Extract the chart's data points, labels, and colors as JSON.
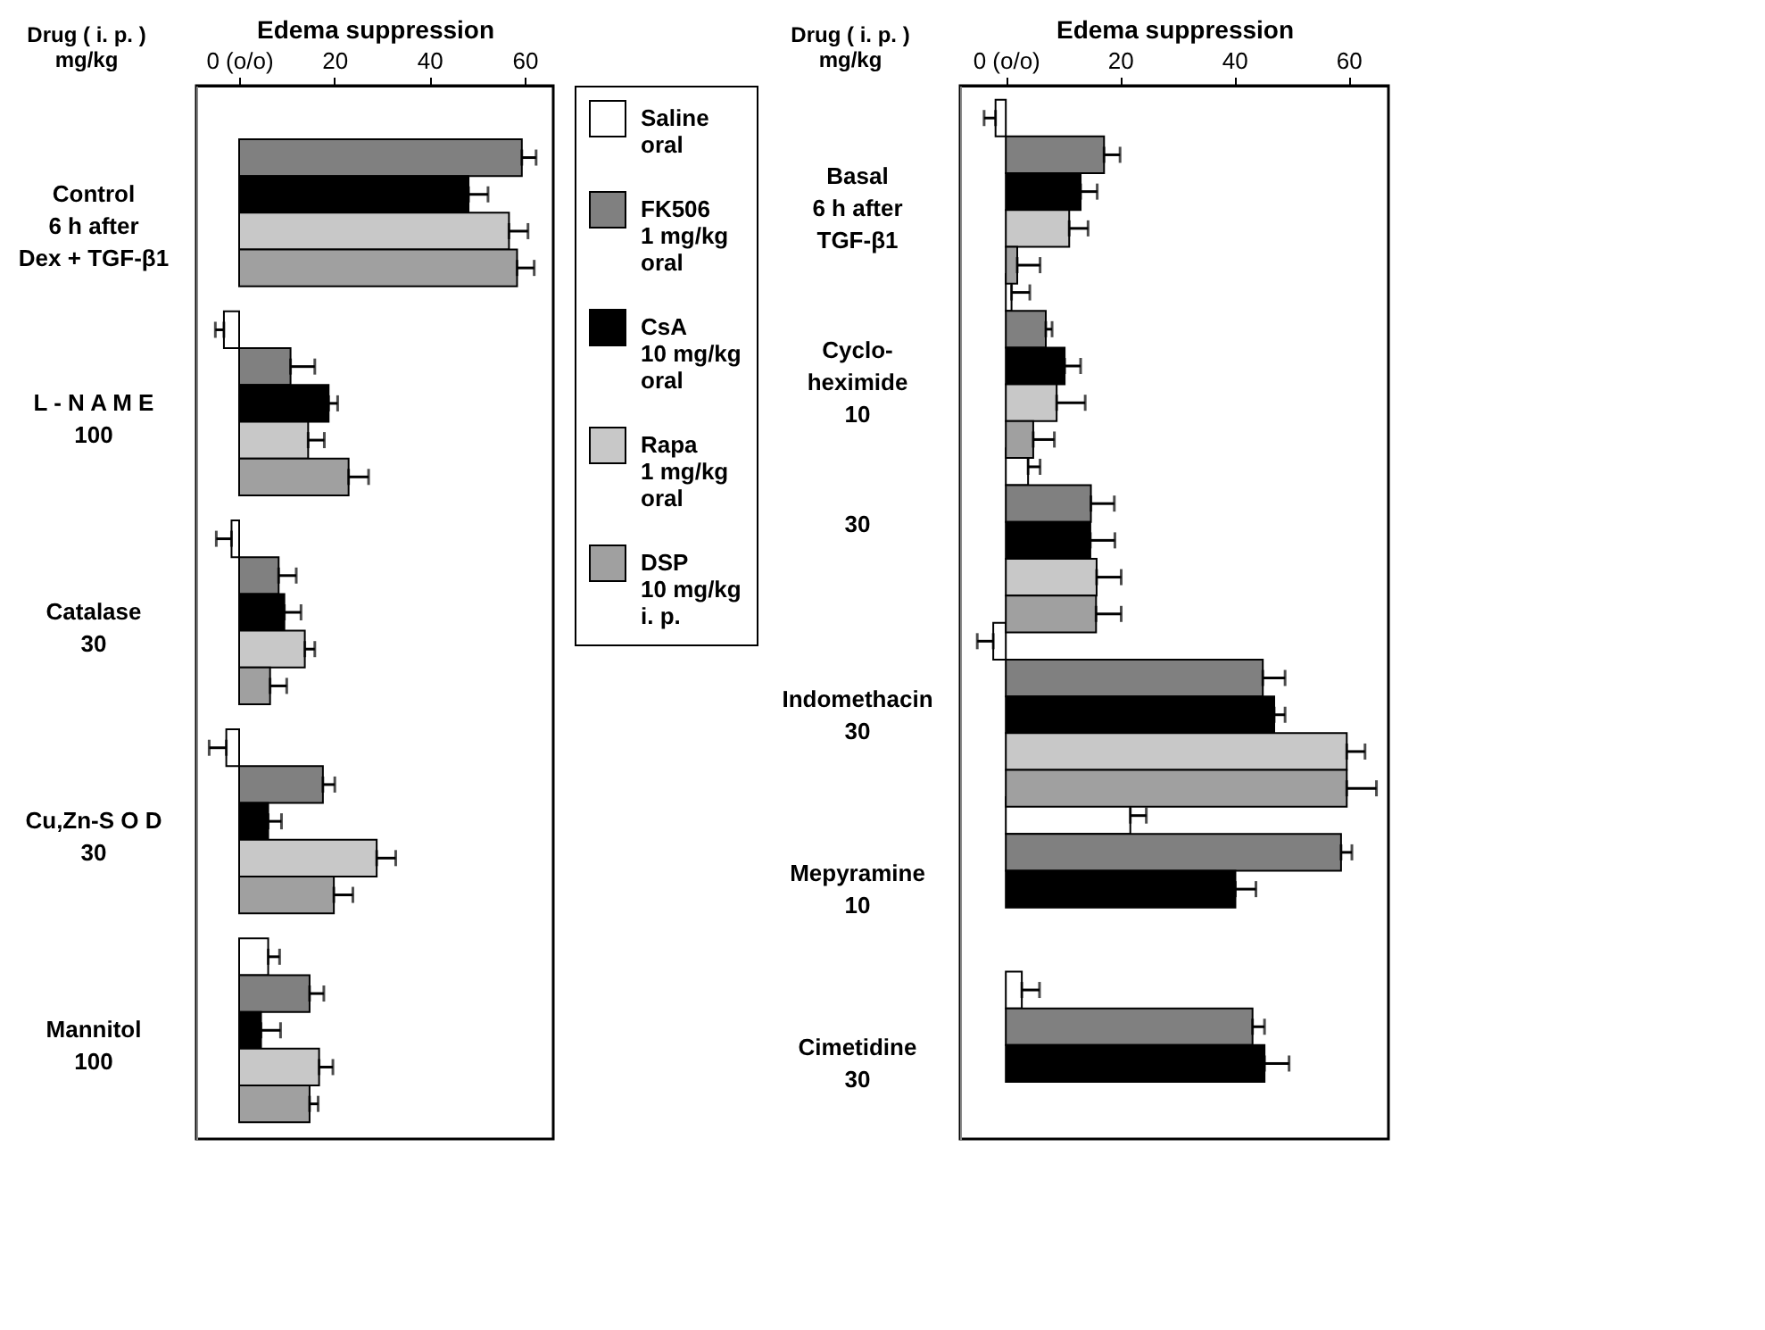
{
  "chart_data": [
    {
      "type": "bar",
      "orientation": "horizontal",
      "xlabel": "Edema suppression",
      "ylabel": "Drug ( i. p. )\nmg/kg",
      "xlim": [
        -9,
        66
      ],
      "xticks": [
        {
          "value": 0,
          "label": "0 (o/o)"
        },
        20,
        40,
        60
      ],
      "legend": "right",
      "categories": [
        "Control\n6 h   after\nDex + TGF-β1",
        "L - N A M E\n100",
        "Catalase\n30",
        "Cu,Zn-S O D\n30",
        "Mannitol\n100"
      ],
      "series": [
        {
          "name": "Saline\noral",
          "color": "#ffffff",
          "values": [
            null,
            -3.2,
            -1.6,
            -2.7,
            6.1
          ],
          "errors": [
            null,
            [
              -5.0,
              -3.2
            ],
            [
              -4.8,
              -1.6
            ],
            [
              -6.3,
              -2.7
            ],
            [
              6.1,
              8.5
            ]
          ]
        },
        {
          "name": "FK506\n1 mg/kg\noral",
          "color": "#808080",
          "values": [
            59.4,
            10.8,
            8.3,
            17.6,
            14.8
          ],
          "errors": [
            [
              59.4,
              62.4
            ],
            [
              10.8,
              15.9
            ],
            [
              8.3,
              12.0
            ],
            [
              17.6,
              20.1
            ],
            [
              14.8,
              17.8
            ]
          ]
        },
        {
          "name": "CsA\n10 mg/kg\noral",
          "color": "#000000",
          "values": [
            48.2,
            18.8,
            9.5,
            6.1,
            4.6
          ],
          "errors": [
            [
              48.2,
              52.3
            ],
            [
              18.8,
              20.7
            ],
            [
              9.5,
              13.0
            ],
            [
              6.1,
              8.9
            ],
            [
              4.6,
              8.7
            ]
          ]
        },
        {
          "name": "Rapa\n1 mg/kg\noral",
          "color": "#c8c8c8",
          "values": [
            56.7,
            14.5,
            13.8,
            28.9,
            16.8
          ],
          "errors": [
            [
              56.7,
              60.7
            ],
            [
              14.5,
              17.9
            ],
            [
              13.8,
              15.9
            ],
            [
              28.9,
              32.9
            ],
            [
              16.8,
              19.7
            ]
          ]
        },
        {
          "name": "DSP\n10 mg/kg\ni. p.",
          "color": "#a0a0a0",
          "values": [
            58.4,
            23.0,
            6.5,
            19.9,
            14.8
          ],
          "errors": [
            [
              58.4,
              62.0
            ],
            [
              23.0,
              27.2
            ],
            [
              6.5,
              10.0
            ],
            [
              19.9,
              23.9
            ],
            [
              14.8,
              16.6
            ]
          ]
        }
      ]
    },
    {
      "type": "bar",
      "orientation": "horizontal",
      "xlabel": "Edema suppression",
      "ylabel": "Drug ( i. p. )\nmg/kg",
      "xlim": [
        -8,
        67
      ],
      "xticks": [
        {
          "value": 0,
          "label": "0 (o/o)"
        },
        20,
        40,
        60
      ],
      "categories": [
        "Basal\n6 h   after\nTGF-β1",
        "Cyclo-\nheximide\n10",
        "30",
        "Indomethacin\n30",
        "Mepyramine\n10",
        "Cimetidine\n30"
      ],
      "series": [
        {
          "color": "#ffffff",
          "values": [
            -1.8,
            1.0,
            3.9,
            -2.2,
            21.8,
            2.8
          ],
          "errors": [
            [
              -3.8,
              -1.8
            ],
            [
              1.0,
              4.2
            ],
            [
              3.9,
              6.0
            ],
            [
              -5.0,
              -2.2
            ],
            [
              21.8,
              24.6
            ],
            [
              2.8,
              5.9
            ]
          ]
        },
        {
          "color": "#808080",
          "values": [
            17.2,
            7.0,
            14.9,
            45.0,
            58.7,
            43.2
          ],
          "errors": [
            [
              17.2,
              20.0
            ],
            [
              7.0,
              8.1
            ],
            [
              14.9,
              19.0
            ],
            [
              45.0,
              48.9
            ],
            [
              58.7,
              60.6
            ],
            [
              43.2,
              45.3
            ]
          ]
        },
        {
          "color": "#000000",
          "values": [
            13.1,
            10.3,
            14.8,
            47.0,
            40.2,
            45.3
          ],
          "errors": [
            [
              13.1,
              16.0
            ],
            [
              10.3,
              13.1
            ],
            [
              14.8,
              19.1
            ],
            [
              47.0,
              48.9
            ],
            [
              40.2,
              43.8
            ],
            [
              45.3,
              49.6
            ]
          ]
        },
        {
          "color": "#c8c8c8",
          "values": [
            11.1,
            8.9,
            15.9,
            59.7,
            null,
            null
          ],
          "errors": [
            [
              11.1,
              14.4
            ],
            [
              8.9,
              13.9
            ],
            [
              15.9,
              20.2
            ],
            [
              59.7,
              62.9
            ],
            null,
            null
          ]
        },
        {
          "color": "#a0a0a0",
          "values": [
            2.0,
            4.8,
            15.8,
            59.7,
            null,
            null
          ],
          "errors": [
            [
              2.0,
              6.0
            ],
            [
              4.8,
              8.5
            ],
            [
              15.8,
              20.2
            ],
            [
              59.7,
              64.9
            ],
            null,
            null
          ]
        }
      ]
    }
  ]
}
